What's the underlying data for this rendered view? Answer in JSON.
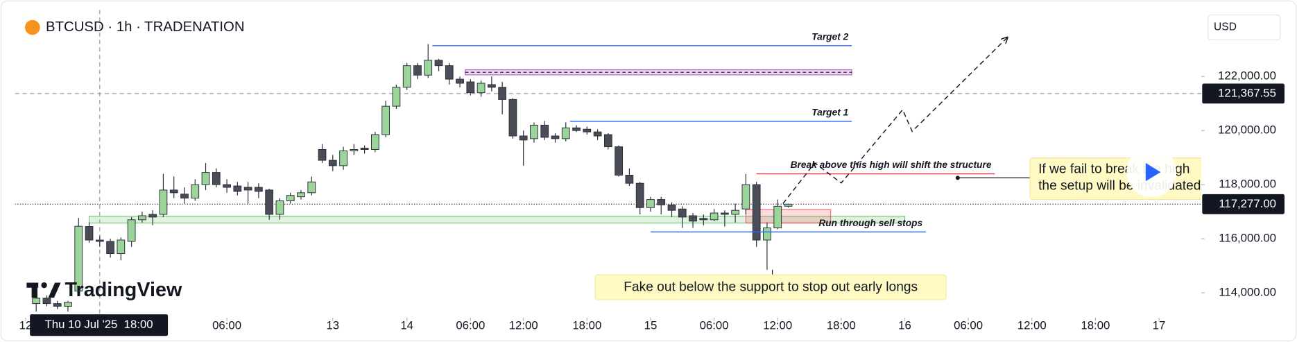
{
  "chart_data": {
    "type": "candlestick",
    "title": "BTCUSD · 1h · TRADENATION",
    "currency": "USD",
    "watermark": "TradingView",
    "up_color": "#9bd59a",
    "down_color": "#4a4d57",
    "x": [
      1,
      2,
      3,
      4,
      5,
      6,
      7,
      8,
      9,
      10,
      11,
      12,
      13,
      14,
      15,
      16,
      17,
      18,
      19,
      20,
      21,
      22,
      23,
      24,
      25,
      26,
      27,
      28,
      29,
      30,
      31,
      32,
      33,
      34,
      35,
      36,
      37,
      38,
      39,
      40,
      41,
      42,
      43,
      44,
      45,
      46,
      47,
      48,
      49,
      50,
      51,
      52,
      53,
      54,
      55,
      56,
      57,
      58,
      59,
      60,
      61,
      62,
      63,
      64,
      65,
      66,
      67,
      68,
      69,
      70,
      71,
      72
    ],
    "open": [
      113600,
      113800,
      113600,
      113500,
      114060,
      116450,
      115950,
      115900,
      115450,
      115900,
      116700,
      116900,
      116900,
      117800,
      117650,
      117500,
      118000,
      118450,
      118000,
      117950,
      117900,
      117900,
      117800,
      116900,
      117400,
      117550,
      117700,
      119300,
      118900,
      118700,
      119250,
      119350,
      119300,
      119850,
      120900,
      121600,
      122400,
      122050,
      122600,
      122400,
      121900,
      121800,
      121400,
      121700,
      121600,
      121150,
      119800,
      119700,
      120200,
      119800,
      119700,
      120100,
      120050,
      119950,
      119850,
      119400,
      118350,
      118050,
      117150,
      117450,
      117250,
      117100,
      116850,
      116750,
      116700,
      116950,
      116900,
      117100,
      118000,
      115950,
      116400,
      117200
    ],
    "high": [
      113900,
      113900,
      113700,
      113700,
      116770,
      116600,
      116100,
      116000,
      116050,
      116800,
      117000,
      117050,
      118400,
      118300,
      117900,
      118200,
      118800,
      118600,
      118200,
      118100,
      118100,
      118050,
      117850,
      117500,
      117700,
      117800,
      118300,
      119500,
      119100,
      119400,
      119500,
      119450,
      119950,
      121100,
      121700,
      122500,
      122500,
      123200,
      122650,
      122500,
      122000,
      121900,
      121850,
      122000,
      121800,
      121200,
      120000,
      120300,
      120350,
      119900,
      120300,
      120200,
      120150,
      120050,
      119900,
      119450,
      118600,
      118100,
      117550,
      117550,
      117350,
      117200,
      116950,
      116900,
      117100,
      117050,
      117300,
      118400,
      118100,
      116600,
      117450,
      117300
    ],
    "low": [
      113300,
      113500,
      113400,
      113300,
      113900,
      115850,
      115700,
      115300,
      115200,
      115700,
      116600,
      116500,
      116800,
      117500,
      117300,
      117400,
      117800,
      117900,
      117700,
      117600,
      117300,
      117500,
      116700,
      116700,
      117300,
      117450,
      117600,
      118800,
      118500,
      118550,
      119100,
      119150,
      119200,
      119750,
      120800,
      121500,
      121900,
      121950,
      122200,
      121700,
      121600,
      121300,
      121250,
      121450,
      120600,
      119700,
      118700,
      119550,
      119650,
      119550,
      119600,
      119950,
      119850,
      119650,
      119300,
      118300,
      117950,
      116900,
      117000,
      116900,
      116800,
      116400,
      116400,
      116500,
      116650,
      116450,
      116600,
      116900,
      115700,
      114850,
      116350,
      117150
    ],
    "close": [
      113800,
      113600,
      113500,
      113650,
      116460,
      115950,
      115900,
      115450,
      115950,
      116700,
      116850,
      116800,
      117800,
      117700,
      117500,
      118000,
      118450,
      118000,
      117900,
      117750,
      117800,
      117750,
      116900,
      117400,
      117600,
      117700,
      118100,
      118900,
      118700,
      119250,
      119300,
      119300,
      119850,
      120900,
      121600,
      122400,
      122050,
      122600,
      122400,
      121900,
      121750,
      121400,
      121750,
      121600,
      121150,
      119800,
      119650,
      120200,
      119750,
      119700,
      120100,
      120000,
      119950,
      119800,
      119400,
      118350,
      118050,
      117150,
      117450,
      117250,
      117050,
      116800,
      116650,
      116700,
      116950,
      116900,
      117050,
      118000,
      115950,
      116400,
      117200,
      117277
    ],
    "xlim": [
      -1,
      111
    ],
    "xticks": [
      {
        "value": 0,
        "label": "12"
      },
      {
        "value": 19,
        "label": "06:00"
      },
      {
        "value": 29,
        "label": "13"
      },
      {
        "value": 36,
        "label": "14"
      },
      {
        "value": 42,
        "label": "06:00"
      },
      {
        "value": 47,
        "label": "12:00"
      },
      {
        "value": 53,
        "label": "18:00"
      },
      {
        "value": 59,
        "label": "15"
      },
      {
        "value": 65,
        "label": "06:00"
      },
      {
        "value": 71,
        "label": "12:00"
      },
      {
        "value": 77,
        "label": "18:00"
      },
      {
        "value": 83,
        "label": "16"
      },
      {
        "value": 89,
        "label": "06:00"
      },
      {
        "value": 95,
        "label": "12:00"
      },
      {
        "value": 101,
        "label": "18:00"
      },
      {
        "value": 107,
        "label": "17"
      }
    ],
    "ylim": [
      113080,
      124460
    ],
    "yticks": [
      {
        "value": 114000,
        "label": "114,000.00"
      },
      {
        "value": 116000,
        "label": "116,000.00"
      },
      {
        "value": 118000,
        "label": "118,000.00"
      },
      {
        "value": 120000,
        "label": "120,000.00"
      },
      {
        "value": 122000,
        "label": "122,000.00"
      }
    ],
    "crosshair": {
      "x": 7,
      "x_label": "Thu 10 Jul '25  18:00",
      "y": 121367.55,
      "y_label": "121,367.55"
    },
    "last_price": {
      "value": 117277,
      "label": "117,277.00"
    },
    "levels": [
      {
        "label": "Target 2",
        "price": 123140,
        "from": 38.4,
        "to": 78,
        "color": "#2962ff"
      },
      {
        "label": "Target 1",
        "price": 120340,
        "from": 51.4,
        "to": 78,
        "color": "#2962ff"
      },
      {
        "label": "Break above this high will shift the structure",
        "price": 118400,
        "from": 69,
        "to": 91.5,
        "color": "#f23645"
      },
      {
        "label": "Run through sell stops",
        "price": 116250,
        "from": 59,
        "to": 85,
        "color": "#2962ff"
      }
    ],
    "zones": [
      {
        "top": 116830,
        "bottom": 116580,
        "from": 6,
        "to": 83,
        "color": "#4caf50"
      },
      {
        "top": 117080,
        "bottom": 116580,
        "from": 68,
        "to": 76,
        "color": "#f23645"
      },
      {
        "top": 122250,
        "bottom": 122060,
        "from": 41.5,
        "to": 78,
        "color": "#9c27b0"
      }
    ],
    "projection": {
      "x": [
        71.5,
        74.5,
        77,
        82.8,
        83.7,
        92.7
      ],
      "y": [
        117300,
        118800,
        118060,
        120770,
        119970,
        123450
      ]
    },
    "callouts": [
      {
        "lines": [
          "Fake out below the support to stop out early longs"
        ],
        "x": 70.5,
        "y": 114850
      },
      {
        "lines": [
          "If we fail to break the high",
          "the setup will be invalidated"
        ],
        "x": 88,
        "y": 118250
      }
    ]
  }
}
